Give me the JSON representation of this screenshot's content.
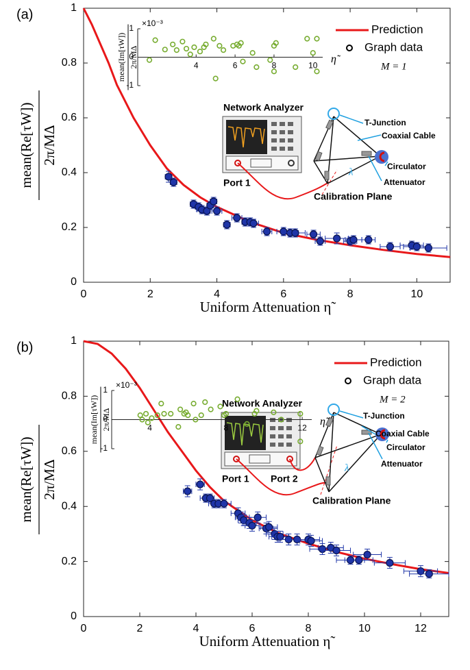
{
  "chart_data": [
    {
      "type": "scatter",
      "panel_label": "(a)",
      "annotation": "M = 1",
      "xlabel": "Uniform Attenuation η̃",
      "ylabel": {
        "numerator": "mean(Re[τW])",
        "denominator": "2π/MΔ"
      },
      "xlim": [
        0,
        11
      ],
      "ylim": [
        0,
        1
      ],
      "xticks": [
        0,
        2,
        4,
        6,
        8,
        10
      ],
      "yticks": [
        0,
        0.2,
        0.4,
        0.6,
        0.8,
        1
      ],
      "legend": "upper right",
      "series": [
        {
          "name": "Prediction",
          "type": "line",
          "color": "#e8181a",
          "x": [
            0,
            0.25,
            0.5,
            0.75,
            1,
            1.5,
            2,
            2.5,
            3,
            3.5,
            4,
            5,
            6,
            7,
            8,
            9,
            10,
            11
          ],
          "values": [
            1,
            0.94,
            0.87,
            0.8,
            0.72,
            0.6,
            0.5,
            0.415,
            0.355,
            0.31,
            0.275,
            0.22,
            0.18,
            0.155,
            0.135,
            0.118,
            0.103,
            0.092
          ]
        },
        {
          "name": "Graph data",
          "type": "scatter",
          "color": "#1f35a8",
          "x": [
            2.55,
            2.7,
            3.3,
            3.45,
            3.55,
            3.7,
            3.8,
            3.9,
            4.0,
            4.3,
            4.6,
            4.85,
            5.0,
            5.1,
            5.5,
            6.0,
            6.2,
            6.35,
            6.9,
            7.1,
            7.6,
            8.0,
            8.1,
            8.55,
            9.2,
            9.85,
            10.0,
            10.35
          ],
          "values": [
            0.385,
            0.365,
            0.285,
            0.275,
            0.265,
            0.26,
            0.28,
            0.295,
            0.26,
            0.21,
            0.235,
            0.22,
            0.22,
            0.215,
            0.185,
            0.185,
            0.18,
            0.18,
            0.175,
            0.15,
            0.16,
            0.15,
            0.155,
            0.155,
            0.13,
            0.135,
            0.13,
            0.125
          ],
          "yerr": [
            0.02,
            0.015,
            0.015,
            0.015,
            0.015,
            0.015,
            0.015,
            0.015,
            0.015,
            0.015,
            0.015,
            0.015,
            0.015,
            0.015,
            0.015,
            0.015,
            0.015,
            0.015,
            0.015,
            0.015,
            0.02,
            0.015,
            0.015,
            0.015,
            0.015,
            0.015,
            0.015,
            0.015
          ],
          "xerr": [
            0.1,
            0.1,
            0.1,
            0.1,
            0.15,
            0.1,
            0.1,
            0.1,
            0.15,
            0.1,
            0.15,
            0.1,
            0.15,
            0.15,
            0.15,
            0.2,
            0.25,
            0.3,
            0.2,
            0.15,
            0.35,
            0.2,
            0.25,
            0.2,
            0.3,
            0.35,
            0.4,
            0.55
          ]
        }
      ]
    },
    {
      "type": "scatter",
      "xlabel": "η̃",
      "y_multiplier": "×10⁻³",
      "ylabel": {
        "numerator": "mean(Im[τW])",
        "denominator": "2π/MΔ"
      },
      "xlim": [
        1,
        10.5
      ],
      "ylim": [
        -1,
        1
      ],
      "xticks": [
        4,
        6,
        8,
        10
      ],
      "yticks": [
        -1,
        0,
        1
      ],
      "series": [
        {
          "type": "scatter",
          "color": "#77ac30",
          "x": [
            1.6,
            1.9,
            2.4,
            2.8,
            3.0,
            3.3,
            3.5,
            3.7,
            3.9,
            4.2,
            4.4,
            4.5,
            4.9,
            5.0,
            5.2,
            5.4,
            5.9,
            6.1,
            6.2,
            6.3,
            6.4,
            6.9,
            7.1,
            7.8,
            8.0,
            8.0,
            8.1,
            9.1,
            9.7,
            10.0,
            10.2,
            10.2
          ],
          "values": [
            -0.1,
            0.6,
            0.27,
            0.45,
            0.25,
            0.55,
            0.3,
            0.1,
            0.35,
            0.2,
            0.35,
            0.45,
            0.65,
            -0.75,
            0.4,
            0.25,
            0.4,
            0.45,
            0.4,
            0.5,
            -0.15,
            0.15,
            -0.35,
            -0.1,
            0.4,
            -0.5,
            0.5,
            -0.35,
            0.65,
            0.15,
            0.65,
            -0.5
          ]
        }
      ]
    },
    {
      "type": "scatter",
      "panel_label": "(b)",
      "annotation": "M = 2",
      "xlabel": "Uniform Attenuation η̃",
      "ylabel": {
        "numerator": "mean(Re[τW])",
        "denominator": "2π/MΔ"
      },
      "xlim": [
        0,
        13
      ],
      "ylim": [
        0,
        1
      ],
      "xticks": [
        0,
        2,
        4,
        6,
        8,
        10,
        12
      ],
      "yticks": [
        0,
        0.2,
        0.4,
        0.6,
        0.8,
        1
      ],
      "legend": "upper right",
      "series": [
        {
          "name": "Prediction",
          "type": "line",
          "color": "#e8181a",
          "x": [
            0,
            0.5,
            1,
            1.5,
            2,
            2.5,
            3,
            3.5,
            4,
            4.5,
            5,
            6,
            7,
            8,
            9,
            10,
            11,
            12,
            13
          ],
          "values": [
            1,
            0.99,
            0.955,
            0.9,
            0.83,
            0.75,
            0.67,
            0.6,
            0.53,
            0.47,
            0.42,
            0.35,
            0.3,
            0.265,
            0.235,
            0.21,
            0.19,
            0.172,
            0.158
          ]
        },
        {
          "name": "Graph data",
          "type": "scatter",
          "color": "#1f35a8",
          "x": [
            3.7,
            4.15,
            4.35,
            4.5,
            4.65,
            4.8,
            5.0,
            5.5,
            5.6,
            5.7,
            5.9,
            6.0,
            6.2,
            6.5,
            6.6,
            6.8,
            6.9,
            7.0,
            7.3,
            7.6,
            8.0,
            8.1,
            8.5,
            8.8,
            9.0,
            9.5,
            9.8,
            10.1,
            10.9,
            12.0,
            12.3
          ],
          "values": [
            0.455,
            0.48,
            0.43,
            0.43,
            0.41,
            0.41,
            0.41,
            0.375,
            0.36,
            0.35,
            0.34,
            0.33,
            0.36,
            0.32,
            0.325,
            0.3,
            0.29,
            0.29,
            0.28,
            0.28,
            0.28,
            0.275,
            0.245,
            0.25,
            0.24,
            0.205,
            0.205,
            0.225,
            0.195,
            0.165,
            0.155
          ],
          "yerr": [
            0.02,
            0.02,
            0.015,
            0.015,
            0.015,
            0.015,
            0.015,
            0.02,
            0.02,
            0.02,
            0.02,
            0.02,
            0.02,
            0.02,
            0.02,
            0.02,
            0.02,
            0.02,
            0.02,
            0.02,
            0.02,
            0.02,
            0.02,
            0.02,
            0.02,
            0.015,
            0.015,
            0.02,
            0.02,
            0.02,
            0.015
          ],
          "xerr": [
            0.15,
            0.15,
            0.2,
            0.15,
            0.2,
            0.2,
            0.25,
            0.25,
            0.2,
            0.2,
            0.25,
            0.25,
            0.3,
            0.25,
            0.3,
            0.3,
            0.3,
            0.3,
            0.35,
            0.4,
            0.4,
            0.4,
            0.45,
            0.45,
            0.5,
            0.5,
            0.5,
            0.5,
            0.55,
            0.6,
            0.7
          ]
        }
      ]
    },
    {
      "type": "scatter",
      "xlabel": "η̃",
      "y_multiplier": "×10⁻³",
      "ylabel": {
        "numerator": "mean(Im[τW])",
        "denominator": "2π/MΔ"
      },
      "xlim": [
        2,
        12.5
      ],
      "ylim": [
        -1,
        1
      ],
      "xticks": [
        4,
        8,
        12
      ],
      "yticks": [
        -1,
        0,
        1
      ],
      "series": [
        {
          "type": "scatter",
          "color": "#77ac30",
          "x": [
            3.5,
            3.6,
            3.8,
            3.9,
            4.1,
            4.4,
            4.6,
            4.75,
            5.1,
            5.5,
            5.6,
            5.8,
            5.9,
            6.0,
            6.3,
            6.4,
            6.7,
            6.9,
            7.2,
            7.7,
            7.9,
            8.0,
            8.6,
            9.1,
            9.5,
            9.6,
            10.5,
            10.9,
            11.9,
            11.9
          ],
          "values": [
            0.15,
            0,
            0.2,
            -0.1,
            0.05,
            0.15,
            0.55,
            0.2,
            0.2,
            -0.25,
            0.35,
            0.2,
            0.25,
            0.15,
            0.55,
            0,
            0.15,
            0.6,
            0.35,
            0.45,
            0.15,
            0.2,
            0.7,
            -0.15,
            0.2,
            0.3,
            0.25,
            0,
            0.2,
            -0.75
          ]
        }
      ]
    }
  ],
  "diagrams": [
    {
      "network_analyzer": "Network Analyzer",
      "port_1": "Port 1",
      "t_junction": "T-Junction",
      "coaxial_cable": "Coaxial Cable",
      "circulator": "Circulator",
      "attenuator": "Attenuator",
      "calibration_plane": "Calibration Plane",
      "wavelength": "λ"
    },
    {
      "network_analyzer": "Network Analyzer",
      "port_1": "Port 1",
      "port_2": "Port 2",
      "t_junction": "T-Junction",
      "coaxial_cable": "Coaxial Cable",
      "circulator": "Circulator",
      "attenuator": "Attenuator",
      "calibration_plane": "Calibration Plane",
      "wavelength": "λ"
    }
  ]
}
